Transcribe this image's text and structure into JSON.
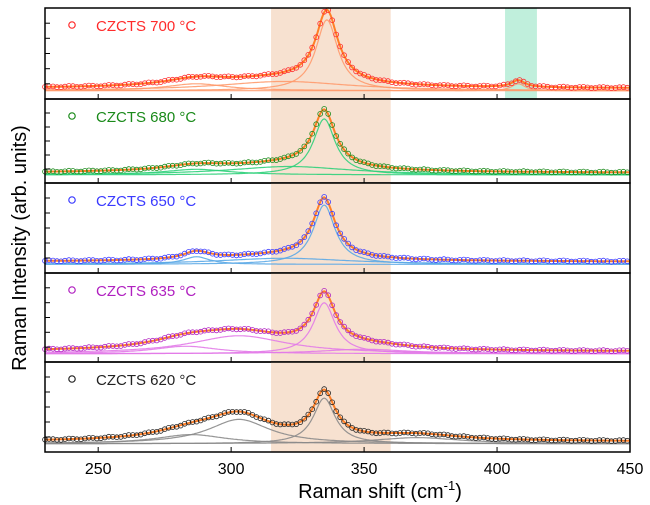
{
  "chart_data": {
    "type": "line",
    "title": "",
    "xlabel": "Raman shift (cm",
    "xlabel_superscript": "-1",
    "xlabel_suffix": ")",
    "ylabel": "Raman Intensity (arb. units)",
    "xlim": [
      230,
      450
    ],
    "xticks": [
      250,
      300,
      350,
      400,
      450
    ],
    "grid": false,
    "legend_position": "top-left of each panel",
    "highlight_bands": [
      {
        "x0": 315,
        "x1": 360,
        "color": "#f6dcc8",
        "panels": "all"
      },
      {
        "x0": 403,
        "x1": 415,
        "color": "#b5ecd6",
        "panels": "first"
      }
    ],
    "series": [
      {
        "name": "CZCTS 700 °C",
        "color": "#ff2b2b",
        "fit_color": "#ff9a6b",
        "fit_line_color": "#ff7f27",
        "baseline": 0.06,
        "peaks": [
          {
            "center": 336,
            "height": 0.92,
            "width": 5
          },
          {
            "center": 287,
            "height": 0.09,
            "width": 14
          },
          {
            "center": 320,
            "height": 0.12,
            "width": 30
          },
          {
            "center": 408,
            "height": 0.09,
            "width": 3
          }
        ]
      },
      {
        "name": "CZCTS 680 °C",
        "color": "#1a8a1a",
        "fit_color": "#2fd07a",
        "fit_line_color": "#ff7f27",
        "baseline": 0.06,
        "peaks": [
          {
            "center": 335,
            "height": 0.8,
            "width": 5
          },
          {
            "center": 287,
            "height": 0.08,
            "width": 15
          },
          {
            "center": 322,
            "height": 0.12,
            "width": 28
          }
        ]
      },
      {
        "name": "CZCTS 650 °C",
        "color": "#3a3aff",
        "fit_color": "#5aa9e6",
        "fit_line_color": "#ff7f27",
        "baseline": 0.07,
        "peaks": [
          {
            "center": 335,
            "height": 0.78,
            "width": 5
          },
          {
            "center": 287,
            "height": 0.1,
            "width": 6
          },
          {
            "center": 320,
            "height": 0.08,
            "width": 30
          }
        ]
      },
      {
        "name": "CZCTS 635 °C",
        "color": "#b020c0",
        "fit_color": "#e27ae8",
        "fit_line_color": "#ff7f27",
        "baseline": 0.06,
        "peaks": [
          {
            "center": 335,
            "height": 0.68,
            "width": 5
          },
          {
            "center": 303,
            "height": 0.24,
            "width": 22
          },
          {
            "center": 283,
            "height": 0.1,
            "width": 15
          },
          {
            "center": 350,
            "height": 0.06,
            "width": 20
          }
        ]
      },
      {
        "name": "CZCTS 620 °C",
        "color": "#222222",
        "fit_color": "#8a8a8a",
        "fit_line_color": "#ff7f27",
        "baseline": 0.06,
        "peaks": [
          {
            "center": 335,
            "height": 0.6,
            "width": 5
          },
          {
            "center": 303,
            "height": 0.32,
            "width": 14
          },
          {
            "center": 285,
            "height": 0.12,
            "width": 16
          },
          {
            "center": 370,
            "height": 0.08,
            "width": 20
          }
        ]
      }
    ]
  }
}
